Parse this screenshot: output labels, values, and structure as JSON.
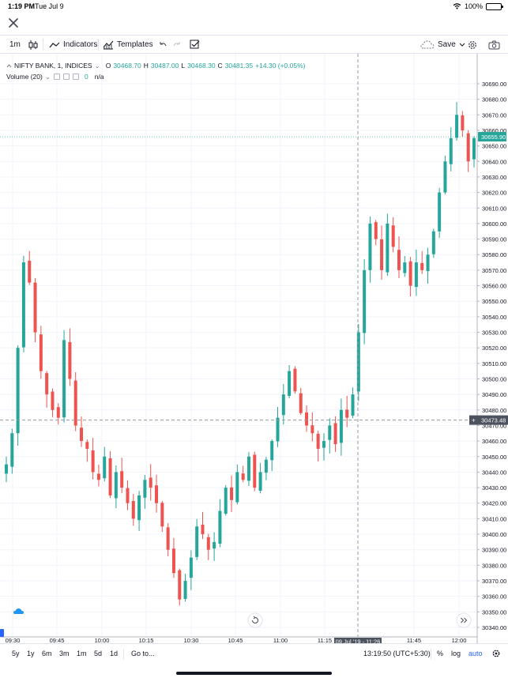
{
  "status_bar": {
    "time": "1:19 PM",
    "date": "Tue Jul 9",
    "battery": "100%"
  },
  "toolbar": {
    "interval": "1m",
    "indicators_label": "Indicators",
    "templates_label": "Templates",
    "save_label": "Save"
  },
  "legend": {
    "symbol": "NIFTY BANK, 1, INDICES",
    "o_label": "O",
    "o_value": "30468.70",
    "h_label": "H",
    "h_value": "30487.00",
    "l_label": "L",
    "l_value": "30468.30",
    "c_label": "C",
    "c_value": "30481.35",
    "change": "+14.30 (+0.05%)",
    "volume_label": "Volume (20)",
    "volume_value": "0",
    "volume_na": "n/a"
  },
  "chart_data": {
    "type": "candlestick",
    "price_axis": {
      "min": 30340,
      "max": 30690,
      "step": 10,
      "ticks": [
        "30690.00",
        "30680.00",
        "30670.00",
        "30660.00",
        "30650.00",
        "30640.00",
        "30630.00",
        "30620.00",
        "30610.00",
        "30600.00",
        "30590.00",
        "30580.00",
        "30570.00",
        "30560.00",
        "30550.00",
        "30540.00",
        "30530.00",
        "30520.00",
        "30510.00",
        "30500.00",
        "30490.00",
        "30480.00",
        "30470.00",
        "30460.00",
        "30450.00",
        "30440.00",
        "30430.00",
        "30420.00",
        "30410.00",
        "30400.00",
        "30390.00",
        "30380.00",
        "30370.00",
        "30360.00",
        "30350.00",
        "30340.00"
      ]
    },
    "time_axis": {
      "ticks": [
        "09:30",
        "09:45",
        "10:00",
        "10:15",
        "10:30",
        "10:45",
        "11:00",
        "11:15",
        "11:45",
        "12:00"
      ]
    },
    "last_price": "30655.90",
    "crosshair": {
      "price": "30473.48",
      "time": "09 Jul '19 - 11:26"
    },
    "up_color": "#26a69a",
    "down_color": "#ef5350",
    "close_path": [
      30445,
      30465,
      30520,
      30575,
      30562,
      30530,
      30505,
      30490,
      30480,
      30475,
      30525,
      30500,
      30470,
      30460,
      30455,
      30440,
      30435,
      30450,
      30425,
      30440,
      30430,
      30420,
      30410,
      30425,
      30435,
      30430,
      30420,
      30405,
      30390,
      30375,
      30358,
      30370,
      30385,
      30405,
      30400,
      30390,
      30395,
      30415,
      30430,
      30422,
      30440,
      30435,
      30450,
      30430,
      30440,
      30448,
      30460,
      30475,
      30490,
      30505,
      30492,
      30478,
      30470,
      30465,
      30455,
      30460,
      30470,
      30458,
      30480,
      30475,
      30490,
      30530,
      30570,
      30600,
      30590,
      30570,
      30600,
      30585,
      30570,
      30575,
      30560,
      30575,
      30570,
      30580,
      30595,
      30620,
      30640,
      30655,
      30670,
      30660,
      30640,
      30655
    ]
  },
  "bottom_bar": {
    "ranges": [
      "5y",
      "1y",
      "6m",
      "3m",
      "1m",
      "5d",
      "1d"
    ],
    "goto_label": "Go to...",
    "clock": "13:19:50 (UTC+5:30)",
    "percent_label": "%",
    "log_label": "log",
    "auto_label": "auto"
  },
  "icons": {
    "close": "close-icon",
    "candles": "candlestick-icon",
    "indicators": "indicators-icon",
    "templates": "templates-icon",
    "undo": "undo-icon",
    "redo": "redo-icon",
    "checklist": "checklist-icon",
    "cloud": "cloud-icon",
    "settings": "gear-icon",
    "camera": "camera-icon",
    "reset": "reset-icon",
    "scroll": "scroll-right-icon",
    "wifi": "wifi-icon"
  }
}
